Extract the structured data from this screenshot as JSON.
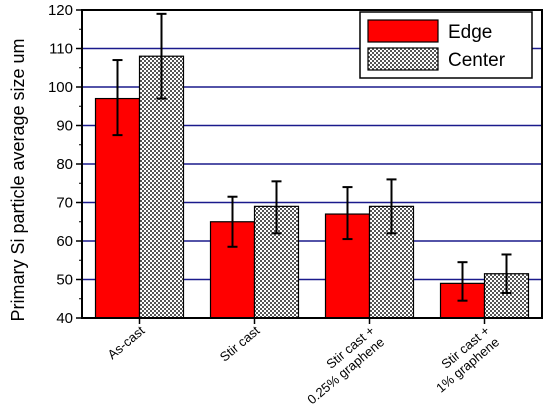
{
  "chart_data": {
    "type": "bar",
    "categories": [
      [
        "As-cast"
      ],
      [
        "Stir cast"
      ],
      [
        "Stir cast +",
        "0.25% graphene"
      ],
      [
        "Stir cast +",
        "1% graphene"
      ]
    ],
    "series": [
      {
        "name": "Edge",
        "color": "#ff0000",
        "pattern": "solid",
        "values": [
          97,
          65,
          67,
          49
        ],
        "error": [
          [
            87.5,
            107
          ],
          [
            58.5,
            71.5
          ],
          [
            60.5,
            74
          ],
          [
            44.5,
            54.5
          ]
        ]
      },
      {
        "name": "Center",
        "color": "#a0a0a0",
        "pattern": "checkerboard",
        "values": [
          108,
          69,
          69,
          51.5
        ],
        "error": [
          [
            97,
            119
          ],
          [
            62,
            75.5
          ],
          [
            62,
            76
          ],
          [
            46.5,
            56.5
          ]
        ]
      }
    ],
    "ylabel": "Primary Si particle average size um",
    "xlabel": "",
    "ylim": [
      40,
      120
    ],
    "yticks": [
      40,
      50,
      60,
      70,
      80,
      90,
      100,
      110,
      120
    ],
    "gridlines": [
      50,
      60,
      70,
      80,
      90,
      100,
      110
    ],
    "grid_color": "#1a1a8c",
    "grid": true,
    "legend": "top-right"
  }
}
